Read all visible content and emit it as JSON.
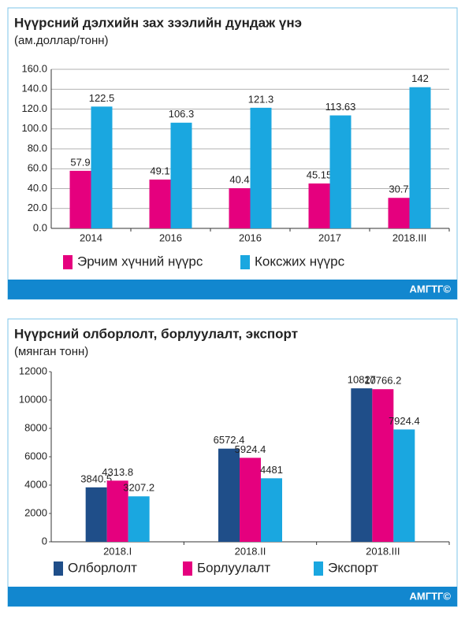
{
  "chart_data": [
    {
      "type": "bar",
      "title": "Нүүрсний дэлхийн зах зээлийн дундаж үнэ",
      "subtitle": "(ам.доллар/тонн)",
      "categories": [
        "2014",
        "2016",
        "2016",
        "2017",
        "2018.III"
      ],
      "series": [
        {
          "name": "Эрчим хүчний нүүрс",
          "color": "#e5007e",
          "values": [
            57.9,
            49.1,
            40.4,
            45.15,
            30.7
          ]
        },
        {
          "name": "Коксжих нүүрс",
          "color": "#1aa7e0",
          "values": [
            122.5,
            106.3,
            121.3,
            113.63,
            142
          ]
        }
      ],
      "ylim": [
        0,
        160
      ],
      "yticks": [
        {
          "value": 0,
          "label": "0.0"
        },
        {
          "value": 20,
          "label": "20.0"
        },
        {
          "value": 40,
          "label": "40.0"
        },
        {
          "value": 60,
          "label": "60.0"
        },
        {
          "value": 80,
          "label": "80.0"
        },
        {
          "value": 100,
          "label": "100.0"
        },
        {
          "value": 120,
          "label": "120.0"
        },
        {
          "value": 140,
          "label": "140.0"
        },
        {
          "value": 160,
          "label": "160.0"
        }
      ],
      "grid": true,
      "footer": "АМГТГ©"
    },
    {
      "type": "bar",
      "title": "Нүүрсний олборлолт, борлуулалт, экспорт",
      "subtitle": "(мянган тонн)",
      "categories": [
        "2018.I",
        "2018.II",
        "2018.III"
      ],
      "series": [
        {
          "name": "Олборлолт",
          "color": "#1f4e89",
          "values": [
            3840.5,
            6572.4,
            10827
          ]
        },
        {
          "name": "Борлуулалт",
          "color": "#e5007e",
          "values": [
            4313.8,
            5924.4,
            10766.2
          ]
        },
        {
          "name": "Экспорт",
          "color": "#1aa7e0",
          "values": [
            3207.2,
            4481,
            7924.4
          ]
        }
      ],
      "ylim": [
        0,
        12000
      ],
      "yticks": [
        0,
        2000,
        4000,
        6000,
        8000,
        10000,
        12000
      ],
      "grid": false,
      "footer": "АМГТГ©"
    }
  ]
}
